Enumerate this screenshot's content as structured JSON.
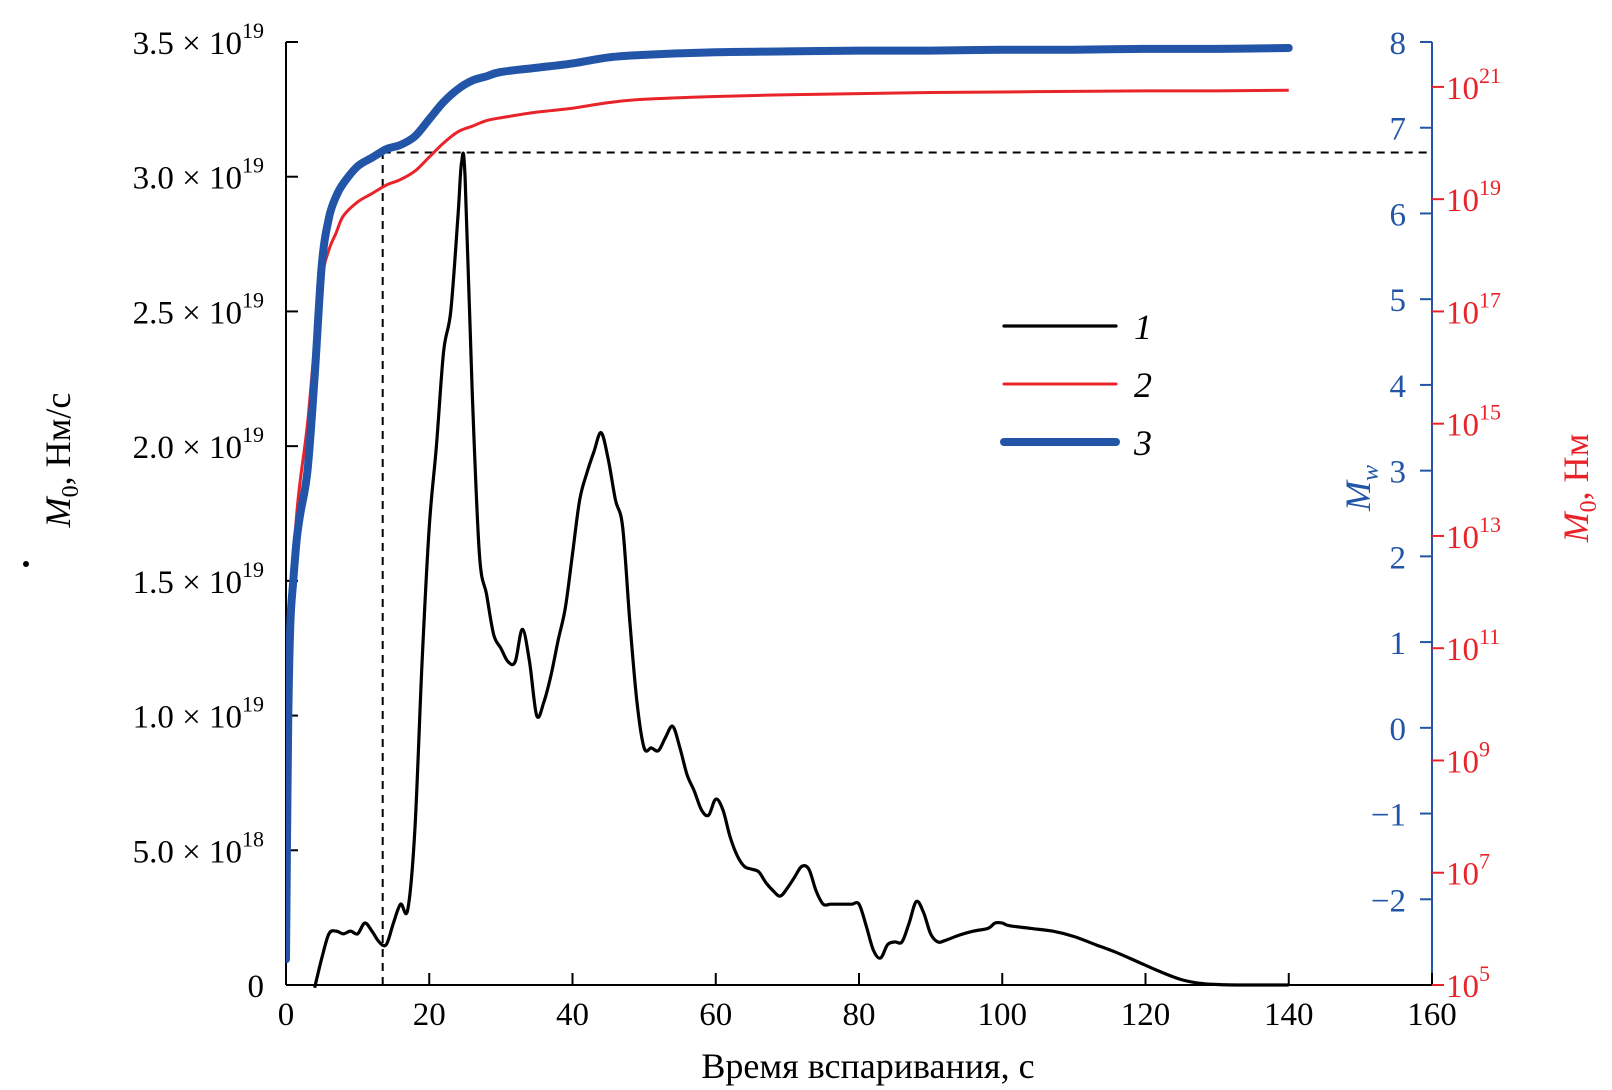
{
  "chart_data": {
    "type": "line",
    "title": "",
    "xlabel": "Время вспаривания, с",
    "ylabel_left": {
      "prefix": "M",
      "sub": "0",
      "suffix": ", Нм/с",
      "dot": true
    },
    "ylabel_right_blue": {
      "main": "M",
      "sub": "w"
    },
    "ylabel_right_red": {
      "main": "M",
      "sub": "0",
      "suffix": ", Нм"
    },
    "colors": {
      "series1": "#000000",
      "series2": "#e8242a",
      "series3": "#2255a8",
      "axis_blue": "#2255a8",
      "axis_red": "#e8242a",
      "axis_black": "#000000"
    },
    "xlim": [
      0,
      160
    ],
    "ylim_left": [
      0,
      3.5e+19
    ],
    "ylim_right_blue": [
      -3,
      8
    ],
    "ylim_right_red_log10": [
      5,
      21.8
    ],
    "x_ticks": [
      "0",
      "20",
      "40",
      "60",
      "80",
      "100",
      "120",
      "140",
      "160"
    ],
    "x_tick_values": [
      0,
      20,
      40,
      60,
      80,
      100,
      120,
      140,
      160
    ],
    "y_left_ticks": [
      {
        "value": 0,
        "mant": "0",
        "exp": ""
      },
      {
        "value": 5e+18,
        "mant": "5.0 × 10",
        "exp": "18"
      },
      {
        "value": 1e+19,
        "mant": "1.0 × 10",
        "exp": "19"
      },
      {
        "value": 1.5e+19,
        "mant": "1.5 × 10",
        "exp": "19"
      },
      {
        "value": 2e+19,
        "mant": "2.0 × 10",
        "exp": "19"
      },
      {
        "value": 2.5e+19,
        "mant": "2.5 × 10",
        "exp": "19"
      },
      {
        "value": 3e+19,
        "mant": "3.0 × 10",
        "exp": "19"
      },
      {
        "value": 3.5e+19,
        "mant": "3.5 × 10",
        "exp": "19"
      }
    ],
    "y_right_blue_ticks": [
      "−2",
      "−1",
      "0",
      "1",
      "2",
      "3",
      "4",
      "5",
      "6",
      "7",
      "8"
    ],
    "y_right_blue_values": [
      -2,
      -1,
      0,
      1,
      2,
      3,
      4,
      5,
      6,
      7,
      8
    ],
    "y_right_red_ticks": [
      {
        "log": 5,
        "base": "10",
        "exp": "5"
      },
      {
        "log": 7,
        "base": "10",
        "exp": "7"
      },
      {
        "log": 9,
        "base": "10",
        "exp": "9"
      },
      {
        "log": 11,
        "base": "10",
        "exp": "11"
      },
      {
        "log": 13,
        "base": "10",
        "exp": "13"
      },
      {
        "log": 15,
        "base": "10",
        "exp": "15"
      },
      {
        "log": 17,
        "base": "10",
        "exp": "17"
      },
      {
        "log": 19,
        "base": "10",
        "exp": "19"
      },
      {
        "log": 21,
        "base": "10",
        "exp": "21"
      }
    ],
    "legend": [
      {
        "label": "1",
        "series": "series1"
      },
      {
        "label": "2",
        "series": "series2"
      },
      {
        "label": "3",
        "series": "series3"
      }
    ],
    "annotation": {
      "type": "dashed-guide",
      "x": 13.5,
      "y_left": 3.09e+19
    },
    "series": [
      {
        "name": "1",
        "axis": "left",
        "x": [
          4,
          5,
          6,
          7,
          8,
          9,
          10,
          11,
          12,
          13,
          14,
          15,
          16,
          17,
          18,
          19,
          20,
          21,
          22,
          23,
          24,
          24.5,
          25,
          26,
          27,
          28,
          29,
          30,
          31,
          32,
          33,
          34,
          35,
          36,
          37,
          38,
          39,
          40,
          41,
          42,
          43,
          44,
          45,
          46,
          47,
          48,
          49,
          50,
          51,
          52,
          53,
          54,
          55,
          56,
          57,
          58,
          59,
          60,
          61,
          62,
          63,
          64,
          65,
          66,
          67,
          68,
          69,
          70,
          71,
          72,
          73,
          74,
          75,
          76,
          77,
          78,
          79,
          80,
          81,
          82,
          83,
          84,
          85,
          86,
          87,
          88,
          89,
          90,
          91,
          92,
          94,
          96,
          98,
          99,
          100,
          101,
          104,
          107,
          110,
          113,
          116,
          119,
          122,
          125,
          128,
          131,
          134,
          137,
          140
        ],
        "y": [
          -1e+17,
          1e+18,
          1.9e+18,
          2e+18,
          1.9e+18,
          2e+18,
          1.9e+18,
          2.3e+18,
          2e+18,
          1.6e+18,
          1.5e+18,
          2.3e+18,
          3e+18,
          2.8e+18,
          5.8e+18,
          1.2e+19,
          1.7e+19,
          2e+19,
          2.35e+19,
          2.5e+19,
          2.85e+19,
          3.05e+19,
          3e+19,
          2.2e+19,
          1.6e+19,
          1.45e+19,
          1.3e+19,
          1.25e+19,
          1.2e+19,
          1.2e+19,
          1.32e+19,
          1.2e+19,
          1e+19,
          1.05e+19,
          1.15e+19,
          1.28e+19,
          1.4e+19,
          1.6e+19,
          1.8e+19,
          1.9e+19,
          1.98e+19,
          2.05e+19,
          1.95e+19,
          1.8e+19,
          1.7e+19,
          1.35e+19,
          1.05e+19,
          8.8e+18,
          8.8e+18,
          8.7e+18,
          9.2e+18,
          9.6e+18,
          8.8e+18,
          7.8e+18,
          7.2e+18,
          6.5e+18,
          6.3e+18,
          6.9e+18,
          6.5e+18,
          5.5e+18,
          4.8e+18,
          4.4e+18,
          4.3e+18,
          4.2e+18,
          3.8e+18,
          3.5e+18,
          3.3e+18,
          3.6e+18,
          4e+18,
          4.4e+18,
          4.3e+18,
          3.5e+18,
          3e+18,
          3e+18,
          3e+18,
          3e+18,
          3e+18,
          3e+18,
          2.2e+18,
          1.3e+18,
          1e+18,
          1.5e+18,
          1.6e+18,
          1.6e+18,
          2.3e+18,
          3.1e+18,
          2.7e+18,
          1.9e+18,
          1.6e+18,
          1.65e+18,
          1.85e+18,
          2e+18,
          2.1e+18,
          2.3e+18,
          2.3e+18,
          2.2e+18,
          2.1e+18,
          2e+18,
          1.8e+18,
          1.5e+18,
          1.2e+18,
          8.5e+17,
          5e+17,
          2e+17,
          5e+16,
          1e+16,
          0,
          0,
          0
        ]
      },
      {
        "name": "2",
        "axis": "right_red",
        "x": [
          0,
          0.3,
          0.6,
          1,
          1.5,
          2,
          3,
          4,
          5,
          6,
          7,
          8,
          10,
          12,
          14,
          16,
          18,
          20,
          22,
          24,
          26,
          28,
          30,
          35,
          40,
          45,
          50,
          60,
          70,
          80,
          90,
          100,
          110,
          120,
          130,
          140
        ],
        "y": [
          5.4,
          9.5,
          11.5,
          12.5,
          13.4,
          14.0,
          15.0,
          16.4,
          17.6,
          18.1,
          18.4,
          18.7,
          18.95,
          19.1,
          19.25,
          19.35,
          19.5,
          19.75,
          20.0,
          20.2,
          20.3,
          20.4,
          20.45,
          20.55,
          20.62,
          20.72,
          20.78,
          20.83,
          20.86,
          20.88,
          20.9,
          20.91,
          20.92,
          20.93,
          20.93,
          20.94
        ]
      },
      {
        "name": "3",
        "axis": "right_blue",
        "x": [
          0,
          0.3,
          0.6,
          1,
          1.5,
          2,
          3,
          4,
          5,
          6,
          7,
          8,
          10,
          12,
          14,
          16,
          18,
          20,
          22,
          24,
          26,
          28,
          30,
          35,
          40,
          45,
          50,
          60,
          70,
          80,
          90,
          100,
          110,
          120,
          130,
          140
        ],
        "y": [
          -2.7,
          0.0,
          1.2,
          1.7,
          2.2,
          2.5,
          3.0,
          4.1,
          5.4,
          5.95,
          6.2,
          6.35,
          6.55,
          6.65,
          6.75,
          6.8,
          6.9,
          7.1,
          7.3,
          7.45,
          7.55,
          7.6,
          7.65,
          7.7,
          7.75,
          7.82,
          7.85,
          7.88,
          7.89,
          7.9,
          7.9,
          7.91,
          7.91,
          7.92,
          7.92,
          7.93
        ]
      }
    ]
  }
}
